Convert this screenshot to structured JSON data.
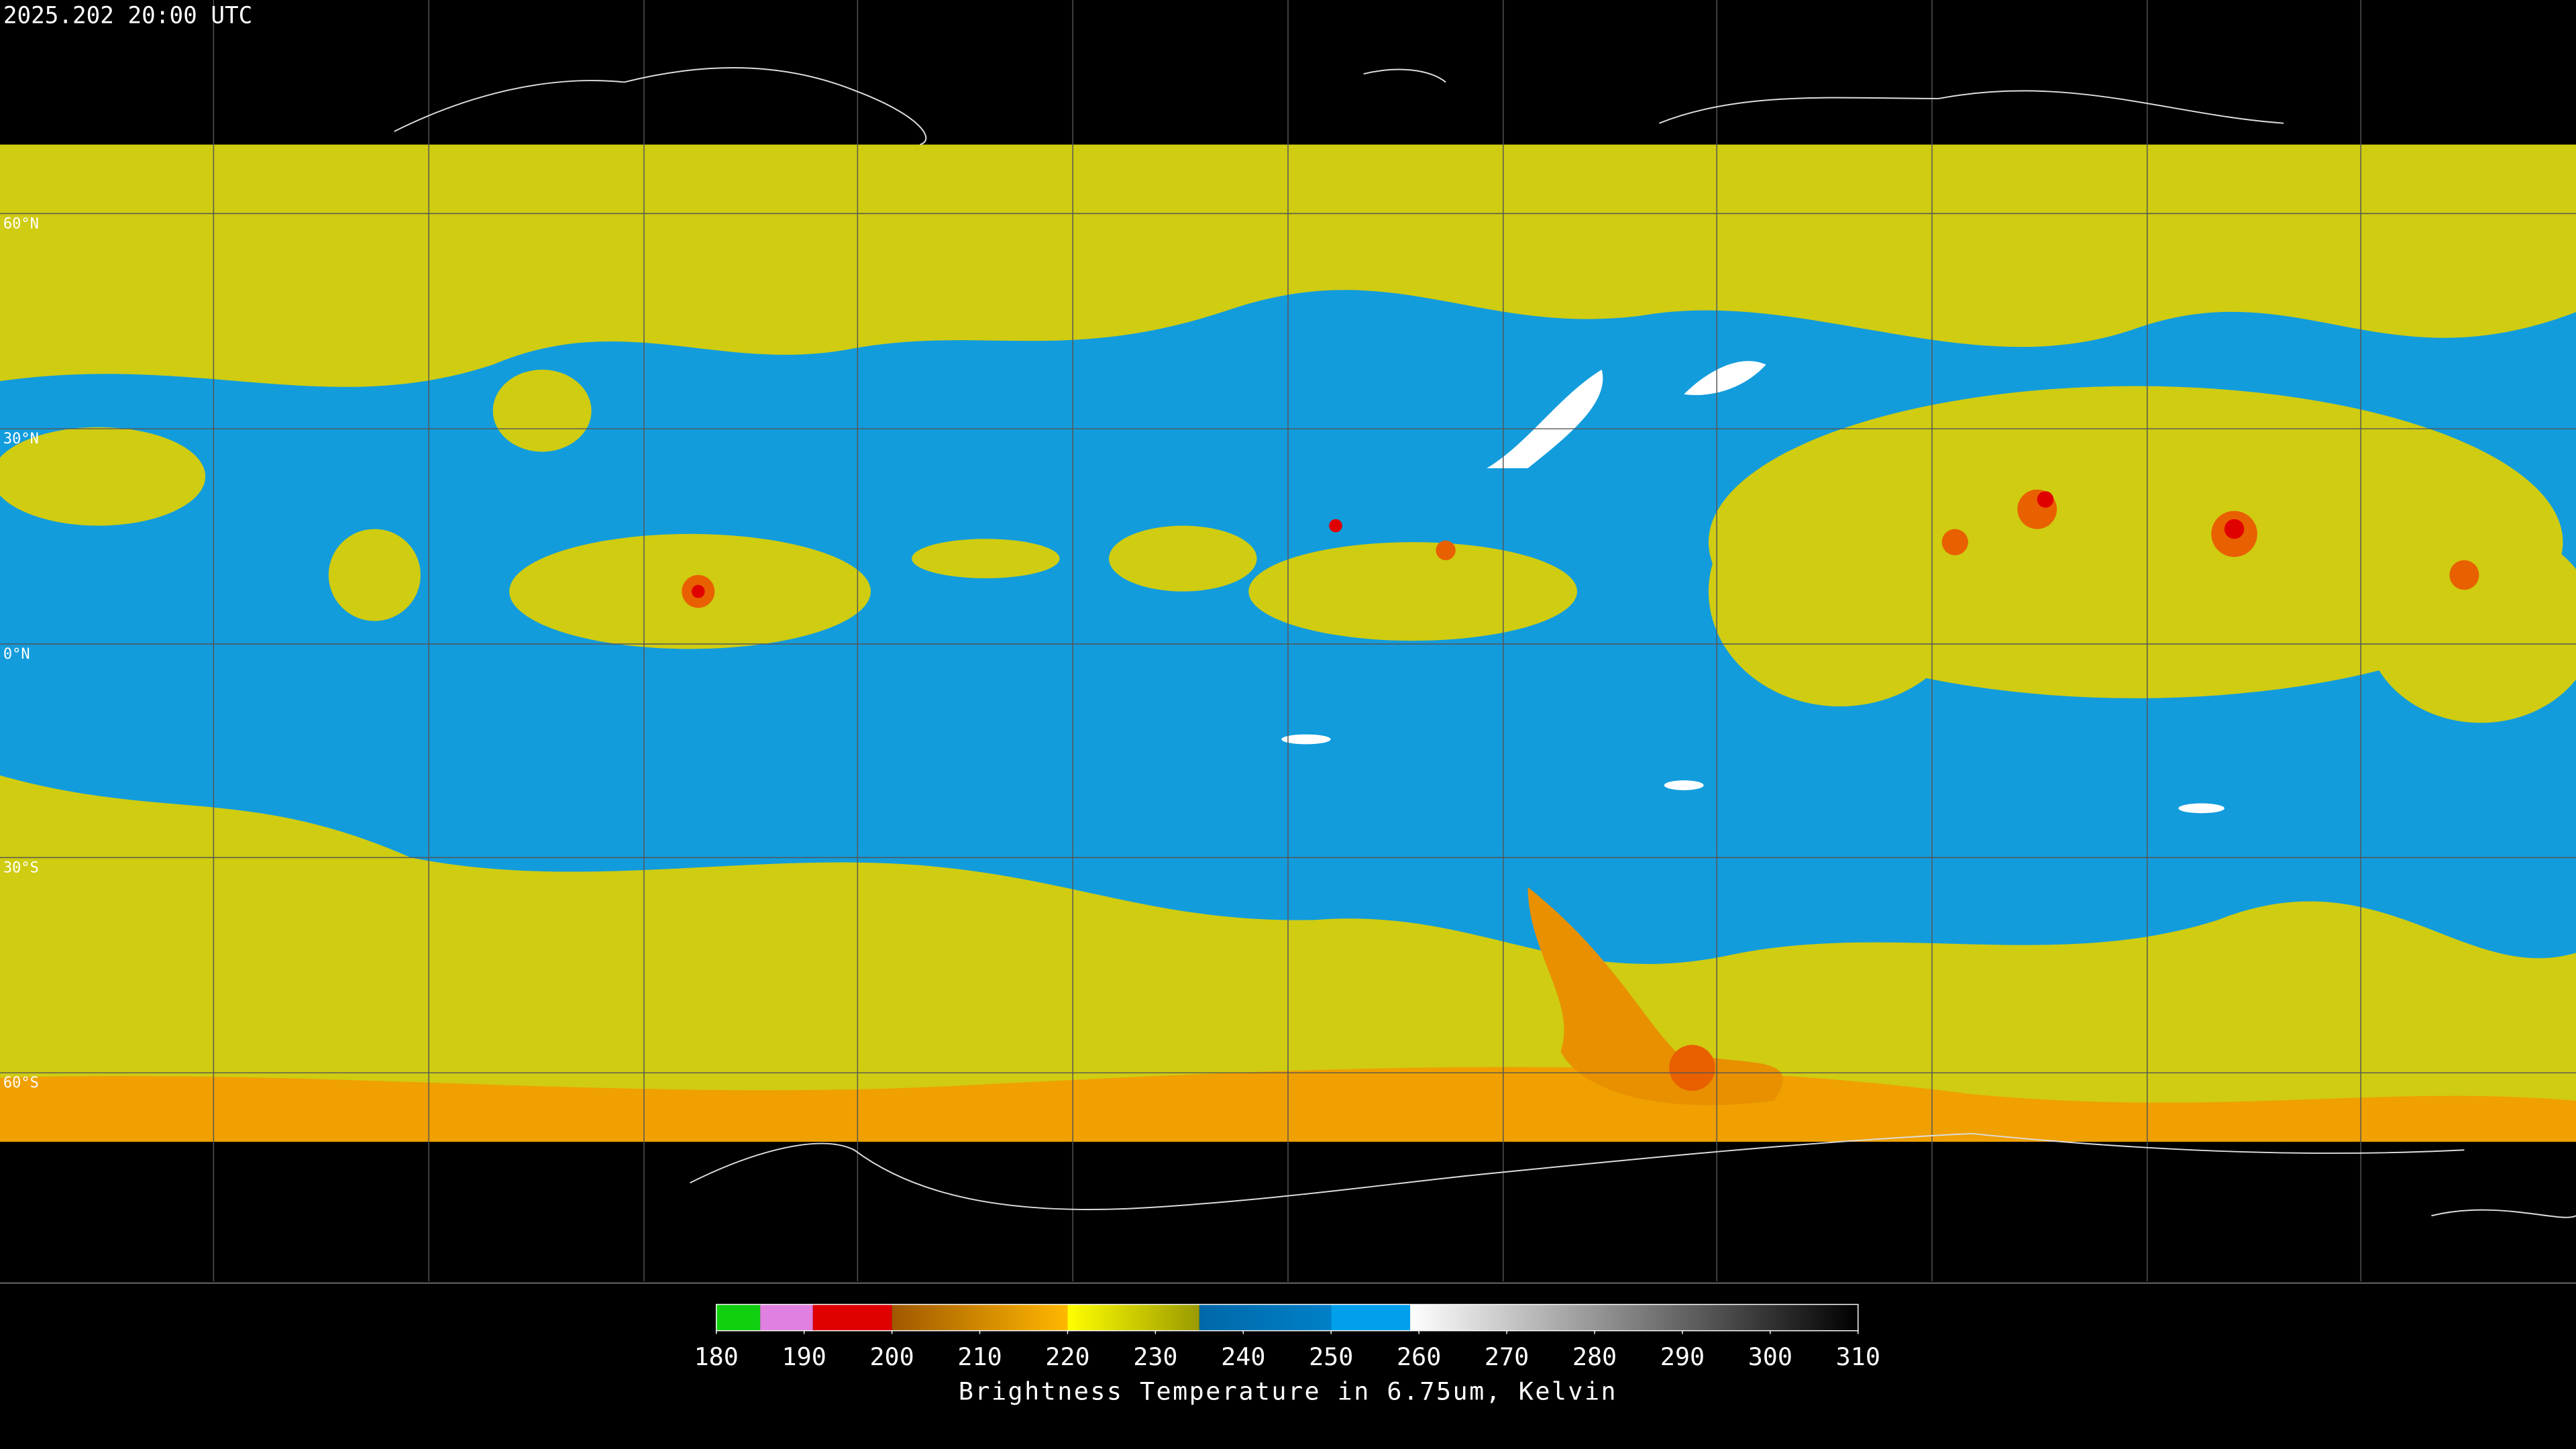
{
  "timestamp": "2025.202 20:00 UTC",
  "lat_labels": [
    "60°N",
    "30°N",
    "0°N",
    "30°S",
    "60°S"
  ],
  "colorbar": {
    "title": "Brightness Temperature in 6.75um, Kelvin",
    "lim": [
      180,
      310
    ],
    "ticks": [
      180,
      190,
      200,
      210,
      220,
      230,
      240,
      250,
      260,
      270,
      280,
      290,
      300,
      310
    ],
    "segments": [
      {
        "from": 180,
        "to": 185,
        "colors": [
          "#10d010",
          "#10d010"
        ]
      },
      {
        "from": 185,
        "to": 191,
        "colors": [
          "#e080e0",
          "#e080e0"
        ]
      },
      {
        "from": 191,
        "to": 200,
        "colors": [
          "#e00000",
          "#e00000"
        ]
      },
      {
        "from": 200,
        "to": 220,
        "colors": [
          "#a05800",
          "#ffb800"
        ]
      },
      {
        "from": 220,
        "to": 235,
        "colors": [
          "#ffff00",
          "#9a9a00"
        ]
      },
      {
        "from": 235,
        "to": 250,
        "colors": [
          "#0068a8",
          "#0080c8"
        ]
      },
      {
        "from": 250,
        "to": 259,
        "colors": [
          "#00a0ec",
          "#00a0ec"
        ]
      },
      {
        "from": 259,
        "to": 310,
        "colors": [
          "#ffffff",
          "#000000"
        ]
      }
    ]
  }
}
